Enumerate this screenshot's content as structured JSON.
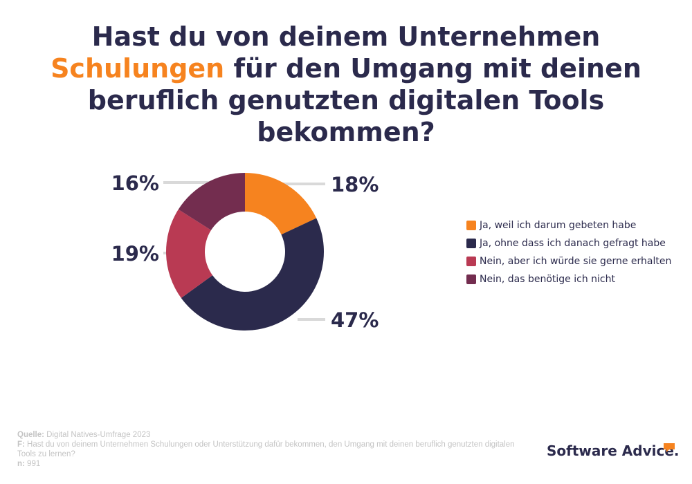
{
  "title": {
    "before": "Hast du von deinem Unternehmen ",
    "highlight": "Schulungen",
    "after": " für den Umgang mit deinen beruflich genutzten digitalen Tools bekommen?"
  },
  "colors": {
    "accent": "#f6831f",
    "navy": "#2b2a4c",
    "red": "#b93a53",
    "plum": "#732d4f",
    "leader": "#d9d9d9",
    "footer_text": "#c4c4c4"
  },
  "chart_data": {
    "type": "pie",
    "donut": true,
    "start_angle_deg": 0,
    "direction": "clockwise",
    "legend_position": "right",
    "slices": [
      {
        "label": "Ja, weil ich darum gebeten habe",
        "value": 18,
        "display": "18%",
        "color": "#f6831f"
      },
      {
        "label": "Ja, ohne dass ich danach gefragt habe",
        "value": 47,
        "display": "47%",
        "color": "#2b2a4c"
      },
      {
        "label": "Nein, aber ich würde sie gerne erhalten",
        "value": 19,
        "display": "19%",
        "color": "#b93a53"
      },
      {
        "label": "Nein, das benötige ich nicht",
        "value": 16,
        "display": "16%",
        "color": "#732d4f"
      }
    ]
  },
  "footer": {
    "source_label": "Quelle:",
    "source_value": " Digital Natives-Umfrage 2023",
    "question_label": "F:",
    "question_value": " Hast du von deinem Unternehmen Schulungen oder Unterstützung dafür bekommen, den Umgang mit deinen beruflich genutzten digitalen Tools zu lernen?",
    "n_label": "n:",
    "n_value": " 991"
  },
  "logo": {
    "text": "Software Advice.",
    "icon": "speech-bubble-icon"
  }
}
